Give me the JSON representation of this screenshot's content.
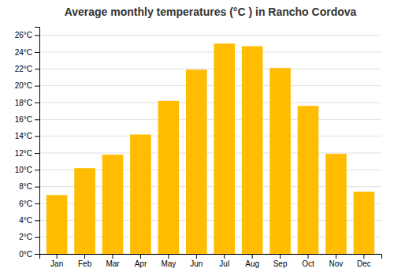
{
  "chart_data": {
    "type": "bar",
    "title": "Average monthly temperatures (°C ) in Rancho Cordova",
    "categories": [
      "Jan",
      "Feb",
      "Mar",
      "Apr",
      "May",
      "Jun",
      "Jul",
      "Aug",
      "Sep",
      "Oct",
      "Nov",
      "Dec"
    ],
    "values": [
      7.0,
      10.2,
      11.8,
      14.2,
      18.2,
      21.9,
      25.0,
      24.7,
      22.1,
      17.6,
      11.9,
      7.4
    ],
    "color": "#FFBC00",
    "ylim": [
      0,
      27
    ],
    "yticks": [
      {
        "value": 0,
        "label": "0°C"
      },
      {
        "value": 2,
        "label": "2°C"
      },
      {
        "value": 4,
        "label": "4°C"
      },
      {
        "value": 6,
        "label": "6°C"
      },
      {
        "value": 8,
        "label": "8°C"
      },
      {
        "value": 10,
        "label": "10°C"
      },
      {
        "value": 12,
        "label": "12°C"
      },
      {
        "value": 14,
        "label": "14°C"
      },
      {
        "value": 16,
        "label": "16°C"
      },
      {
        "value": 18,
        "label": "18°C"
      },
      {
        "value": 20,
        "label": "20°C"
      },
      {
        "value": 22,
        "label": "22°C"
      },
      {
        "value": 24,
        "label": "24°C"
      },
      {
        "value": 26,
        "label": "26°C"
      }
    ],
    "grid": true
  }
}
